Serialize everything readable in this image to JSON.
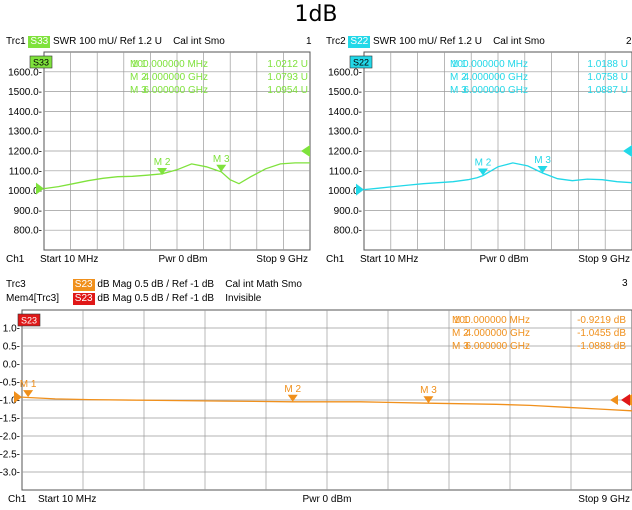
{
  "title": "1dB",
  "colors": {
    "s33": "#7fe23c",
    "s22": "#22d8e8",
    "s23": "#f0901c",
    "mem": "#e01818",
    "grid": "#9a9a9a"
  },
  "panel1": {
    "trace_label": "Trc1",
    "param": "S33",
    "format": "SWR",
    "scale": "100 mU/",
    "ref": "Ref 1.2 U",
    "cal": "Cal int Smo",
    "channel_num": "1",
    "tag": "S33",
    "footer": {
      "ch": "Ch1",
      "start": "Start 10 MHz",
      "pwr": "Pwr 0 dBm",
      "stop": "Stop 9 GHz"
    },
    "markers": [
      {
        "name": "M 1",
        "freq": "100.000000 MHz",
        "value": "1.0212 U"
      },
      {
        "name": "M 2",
        "freq": "4.000000 GHz",
        "value": "1.0793 U"
      },
      {
        "name": "M 3",
        "freq": "6.000000 GHz",
        "value": "1.0954 U"
      }
    ]
  },
  "panel2": {
    "trace_label": "Trc2",
    "param": "S22",
    "format": "SWR",
    "scale": "100 mU/",
    "ref": "Ref 1.2 U",
    "cal": "Cal int Smo",
    "channel_num": "2",
    "tag": "S22",
    "footer": {
      "ch": "Ch1",
      "start": "Start 10 MHz",
      "pwr": "Pwr 0 dBm",
      "stop": "Stop 9 GHz"
    },
    "markers": [
      {
        "name": "M 1",
        "freq": "100.000000 MHz",
        "value": "1.0188 U"
      },
      {
        "name": "M 2",
        "freq": "4.000000 GHz",
        "value": "1.0758 U"
      },
      {
        "name": "M 3",
        "freq": "6.000000 GHz",
        "value": "1.0887 U"
      }
    ]
  },
  "panel3": {
    "trc3_label": "Trc3",
    "trc3_param": "S23",
    "trc3_format": "dB Mag",
    "trc3_scale": "0.5 dB /",
    "trc3_ref": "Ref -1 dB",
    "trc3_cal": "Cal int Math Smo",
    "channel_num": "3",
    "mem_label": "Mem4[Trc3]",
    "mem_param": "S23",
    "mem_format": "dB Mag",
    "mem_scale": "0.5 dB /",
    "mem_ref": "Ref -1 dB",
    "mem_state": "Invisible",
    "tag": "S23",
    "footer": {
      "ch": "Ch1",
      "start": "Start 10 MHz",
      "pwr": "Pwr 0 dBm",
      "stop": "Stop 9 GHz"
    },
    "markers": [
      {
        "name": "M 1",
        "freq": "100.000000 MHz",
        "value": "-0.9219 dB"
      },
      {
        "name": "M 2",
        "freq": "4.000000 GHz",
        "value": "-1.0455 dB"
      },
      {
        "name": "M 3",
        "freq": "6.000000 GHz",
        "value": "-1.0888 dB"
      }
    ]
  },
  "chart_data": [
    {
      "type": "line",
      "title": "",
      "ylim": [
        700,
        1700
      ],
      "xlim": [
        0.01,
        9
      ],
      "yticks": [
        800,
        900,
        1000,
        1100,
        1200,
        1300,
        1400,
        1500,
        1600
      ],
      "ytick_labels": [
        "800.0-",
        "900.0-",
        "1000.0-",
        "1100.0-",
        "1200.0-",
        "1300.0-",
        "1400.0-",
        "1500.0-",
        "1600.0-"
      ],
      "grid": true,
      "series": [
        {
          "x": [
            0.01,
            0.5,
            1,
            1.5,
            2,
            2.5,
            3,
            3.5,
            4,
            4.5,
            5,
            5.5,
            6,
            6.3,
            6.6,
            7,
            7.5,
            8,
            8.5,
            9
          ],
          "y": [
            1010,
            1020,
            1035,
            1050,
            1062,
            1070,
            1072,
            1078,
            1085,
            1105,
            1135,
            1120,
            1095,
            1055,
            1035,
            1070,
            1110,
            1135,
            1140,
            1140
          ]
        }
      ],
      "markers": [
        {
          "label": "M 2",
          "x": 4,
          "y": 1079
        },
        {
          "label": "M 3",
          "x": 6,
          "y": 1095
        }
      ]
    },
    {
      "type": "line",
      "title": "",
      "ylim": [
        700,
        1700
      ],
      "xlim": [
        0.01,
        9
      ],
      "yticks": [
        800,
        900,
        1000,
        1100,
        1200,
        1300,
        1400,
        1500,
        1600
      ],
      "ytick_labels": [
        "800.0-",
        "900.0-",
        "1000.0-",
        "1100.0-",
        "1200.0-",
        "1300.0-",
        "1400.0-",
        "1500.0-",
        "1600.0-"
      ],
      "grid": true,
      "series": [
        {
          "x": [
            0.01,
            0.5,
            1,
            1.5,
            2,
            2.5,
            3,
            3.5,
            3.8,
            4,
            4.5,
            5,
            5.5,
            6,
            6.5,
            7,
            7.5,
            8,
            8.5,
            9
          ],
          "y": [
            1005,
            1012,
            1020,
            1028,
            1035,
            1040,
            1045,
            1055,
            1065,
            1076,
            1120,
            1140,
            1125,
            1089,
            1060,
            1050,
            1058,
            1055,
            1045,
            1040
          ]
        }
      ],
      "markers": [
        {
          "label": "M 2",
          "x": 4,
          "y": 1076
        },
        {
          "label": "M 3",
          "x": 6,
          "y": 1089
        }
      ]
    },
    {
      "type": "line",
      "title": "",
      "ylim": [
        -3.5,
        1.5
      ],
      "xlim": [
        0.01,
        9
      ],
      "yticks": [
        -3,
        -2.5,
        -2,
        -1.5,
        -1,
        -0.5,
        0,
        0.5,
        1
      ],
      "ytick_labels": [
        "-3.0-",
        "-2.5-",
        "-2.0-",
        "-1.5-",
        "-1.0-",
        "-0.5-",
        "0.0-",
        "0.5-",
        "1.0-"
      ],
      "grid": true,
      "series": [
        {
          "x": [
            0.01,
            0.1,
            0.5,
            1,
            2,
            3,
            4,
            5,
            6,
            7,
            7.5,
            8,
            8.5,
            9
          ],
          "y": [
            -0.92,
            -0.93,
            -0.97,
            -0.99,
            -1.01,
            -1.03,
            -1.05,
            -1.05,
            -1.09,
            -1.12,
            -1.15,
            -1.2,
            -1.25,
            -1.3
          ]
        }
      ],
      "markers": [
        {
          "label": "M 1",
          "x": 0.1,
          "y": -0.92
        },
        {
          "label": "M 2",
          "x": 4,
          "y": -1.05
        },
        {
          "label": "M 3",
          "x": 6,
          "y": -1.09
        }
      ]
    }
  ]
}
